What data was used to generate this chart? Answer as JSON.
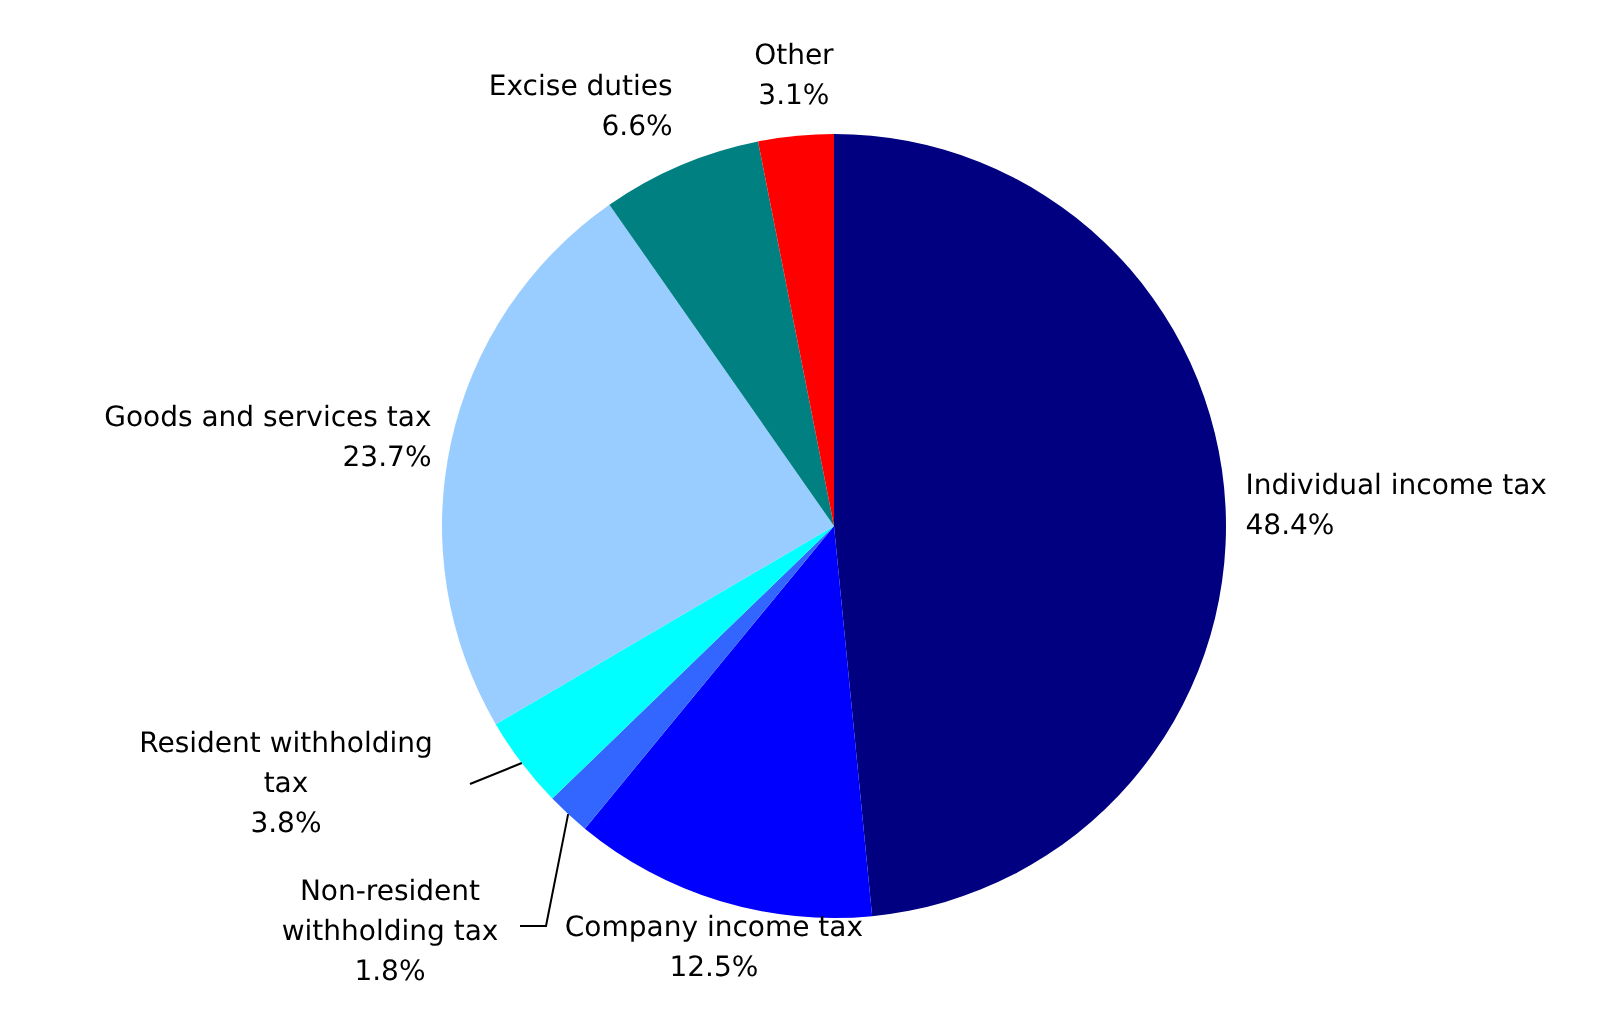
{
  "chart_data": {
    "type": "pie",
    "categories": [
      "Individual income tax",
      "Company income tax",
      "Non-resident withholding tax",
      "Resident withholding tax",
      "Goods and services tax",
      "Excise duties",
      "Other"
    ],
    "values": [
      48.4,
      12.5,
      1.8,
      3.8,
      23.7,
      6.6,
      3.1
    ],
    "value_labels": [
      "48.4%",
      "12.5%",
      "1.8%",
      "3.8%",
      "23.7%",
      "6.6%",
      "3.1%"
    ],
    "colors": [
      "#000080",
      "#0000ff",
      "#3366ff",
      "#00ffff",
      "#99ccff",
      "#008080",
      "#ff0000"
    ]
  }
}
